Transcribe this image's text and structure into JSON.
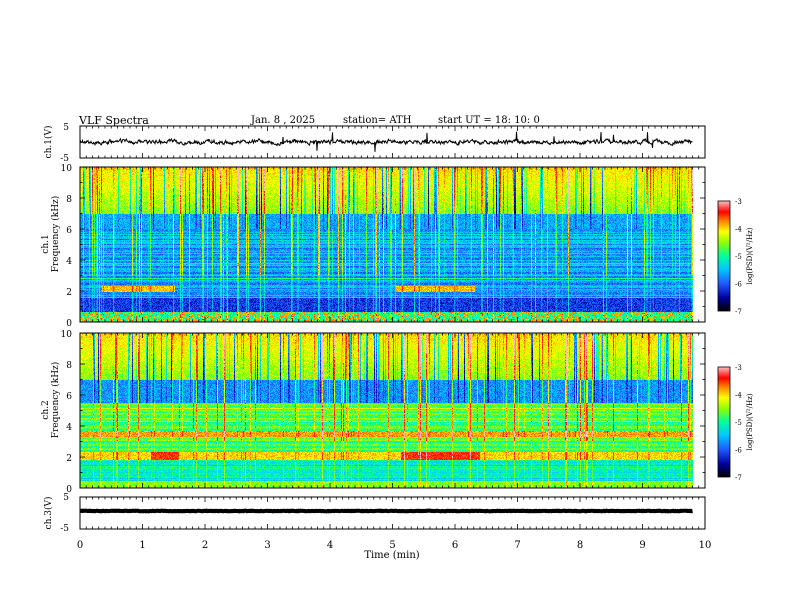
{
  "header": {
    "title": "VLF  Spectra",
    "date": "Jan. 8  , 2025",
    "station": "station= ATH",
    "start_ut": "start  UT  =   18: 10: 0"
  },
  "chart_data": [
    {
      "type": "line",
      "id": "ch1-waveform",
      "ylabel": "ch.1(V)",
      "yticks": [
        "5",
        "-5"
      ],
      "ylim": [
        -5,
        5
      ],
      "xlim": [
        0,
        10
      ],
      "data_end_min": 9.8,
      "baseline": 0,
      "amplitude_approx": 1.2,
      "color": "#000000"
    },
    {
      "type": "heatmap",
      "id": "ch1-spectrogram",
      "ylabel": "ch.1\nFrequency  (kHz)",
      "ylabel_line1": "ch.1",
      "ylabel_line2": "Frequency  (kHz)",
      "yticks": [
        "10",
        "8",
        "6",
        "4",
        "2",
        "0"
      ],
      "ylim": [
        0,
        10
      ],
      "xlim": [
        0,
        10
      ],
      "data_end_min": 9.8,
      "colorbar": {
        "label": "log(PSD)(V²/Hz)",
        "ticks": [
          "-3",
          "-4",
          "-5",
          "-6",
          "-7"
        ],
        "range": [
          -7,
          -3
        ],
        "colors": [
          "#000000",
          "#0000a0",
          "#1e5aff",
          "#00c8ff",
          "#00ff9c",
          "#8cff00",
          "#ffff00",
          "#ff8000",
          "#ff0000",
          "#ffc0c0"
        ]
      }
    },
    {
      "type": "heatmap",
      "id": "ch2-spectrogram",
      "ylabel": "ch.2\nFrequency  (kHz)",
      "ylabel_line1": "ch.2",
      "ylabel_line2": "Frequency  (kHz)",
      "yticks": [
        "10",
        "8",
        "6",
        "4",
        "2",
        "0"
      ],
      "ylim": [
        0,
        10
      ],
      "xlim": [
        0,
        10
      ],
      "data_end_min": 9.8,
      "colorbar": {
        "label": "log(PSD)(V²/Hz)",
        "ticks": [
          "-3",
          "-4",
          "-5",
          "-6",
          "-7"
        ],
        "range": [
          -7,
          -3
        ]
      }
    },
    {
      "type": "line",
      "id": "ch3-waveform",
      "ylabel": "ch.3(V)",
      "yticks": [
        "5",
        "-5"
      ],
      "ylim": [
        -5,
        5
      ],
      "xlim": [
        0,
        10
      ],
      "data_end_min": 9.8,
      "baseline": 0,
      "color": "#000000",
      "xlabel": "Time  (min)",
      "xticks": [
        "0",
        "1",
        "2",
        "3",
        "4",
        "5",
        "6",
        "7",
        "8",
        "9",
        "10"
      ]
    }
  ]
}
